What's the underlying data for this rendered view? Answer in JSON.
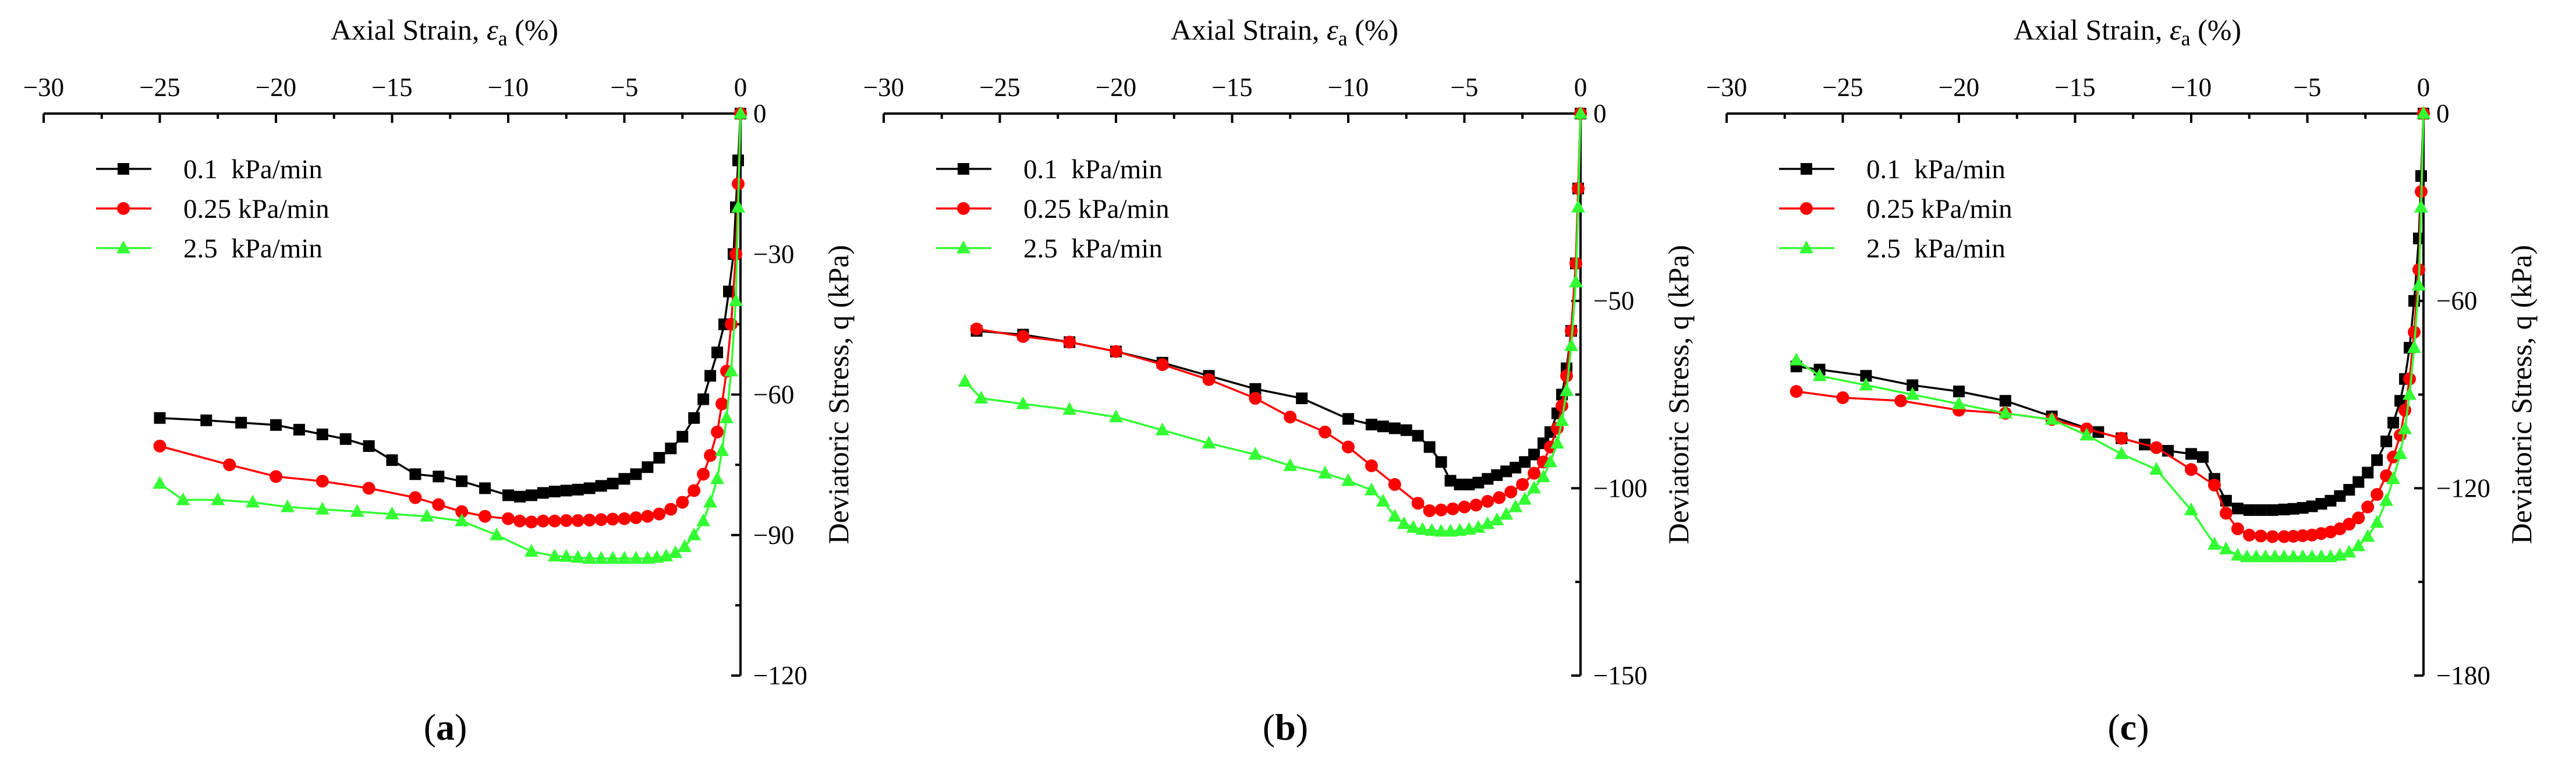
{
  "chart_data": [
    {
      "type": "line",
      "panel_label_parts": [
        "(",
        "a",
        ")"
      ],
      "xlabel": {
        "prefix": "Axial Strain, ",
        "symbol": "ε",
        "subscript": "a",
        "suffix": " (%)"
      },
      "ylabel": "Deviatoric Stress, q (kPa)",
      "xlim": [
        -30,
        0
      ],
      "ylim": [
        -120,
        0
      ],
      "x_ticks": [
        -30,
        -25,
        -20,
        -15,
        -10,
        -5,
        0
      ],
      "x_tick_labels": [
        "−30",
        "−25",
        "−20",
        "−15",
        "−10",
        "−5",
        "0"
      ],
      "y_ticks": [
        0,
        -30,
        -60,
        -90,
        -120
      ],
      "y_tick_labels": [
        "0",
        "−30",
        "−60",
        "−90",
        "−120"
      ],
      "legend_position": "upper-left",
      "series": [
        {
          "name": "0.1  kPa/min",
          "color": "#000000",
          "marker": "square",
          "x": [
            0,
            -0.1,
            -0.2,
            -0.3,
            -0.5,
            -0.7,
            -1.0,
            -1.3,
            -1.6,
            -2.0,
            -2.5,
            -3.0,
            -3.5,
            -4.0,
            -4.5,
            -5.0,
            -5.5,
            -6.0,
            -6.5,
            -7.0,
            -7.5,
            -8.0,
            -8.5,
            -9.0,
            -9.5,
            -10.0,
            -11.0,
            -12.0,
            -13.0,
            -14.0,
            -15.0,
            -16.0,
            -17.0,
            -18.0,
            -19.0,
            -20.0,
            -21.5,
            -23.0,
            -25.0
          ],
          "y": [
            0,
            -10,
            -20,
            -30,
            -38,
            -45,
            -51,
            -56,
            -61,
            -65,
            -69,
            -71.5,
            -73.5,
            -75.5,
            -77,
            -78,
            -79,
            -79.5,
            -80,
            -80.3,
            -80.5,
            -80.7,
            -81,
            -81.5,
            -81.8,
            -81.5,
            -80,
            -78.5,
            -77.5,
            -77,
            -74,
            -71,
            -69.5,
            -68.5,
            -67.5,
            -66.5,
            -66,
            -65.5,
            -65
          ]
        },
        {
          "name": "0.25 kPa/min",
          "color": "#ff0000",
          "marker": "circle",
          "x": [
            0,
            -0.1,
            -0.2,
            -0.4,
            -0.6,
            -0.8,
            -1.0,
            -1.3,
            -1.6,
            -2.0,
            -2.5,
            -3.0,
            -3.5,
            -4.0,
            -4.5,
            -5.0,
            -5.5,
            -6.0,
            -6.5,
            -7.0,
            -7.5,
            -8.0,
            -8.5,
            -9.0,
            -9.5,
            -10.0,
            -11.0,
            -12.0,
            -13.0,
            -14.0,
            -16.0,
            -18.0,
            -20.0,
            -22.0,
            -25.0
          ],
          "y": [
            0,
            -15,
            -30,
            -45,
            -55,
            -62,
            -68,
            -73,
            -77,
            -80.5,
            -83,
            -84.5,
            -85.5,
            -86,
            -86.3,
            -86.5,
            -86.6,
            -86.7,
            -86.8,
            -86.9,
            -86.9,
            -87,
            -87,
            -87.2,
            -87,
            -86.5,
            -86,
            -85,
            -83.5,
            -82,
            -80,
            -78.5,
            -77.5,
            -75,
            -71
          ]
        },
        {
          "name": "2.5  kPa/min",
          "color": "#33ff33",
          "marker": "triangle",
          "x": [
            0,
            -0.1,
            -0.2,
            -0.4,
            -0.6,
            -0.8,
            -1.0,
            -1.3,
            -1.6,
            -2.0,
            -2.4,
            -2.8,
            -3.2,
            -3.6,
            -4.0,
            -4.5,
            -5.0,
            -5.5,
            -6.0,
            -6.5,
            -7.0,
            -7.5,
            -8.0,
            -9.0,
            -10.5,
            -12.0,
            -13.5,
            -15.0,
            -16.5,
            -18.0,
            -19.5,
            -21.0,
            -22.5,
            -24.0,
            -25.0
          ],
          "y": [
            0,
            -20,
            -40,
            -55,
            -65,
            -72,
            -78,
            -83,
            -87,
            -90,
            -92.5,
            -93.8,
            -94.5,
            -94.8,
            -95,
            -95,
            -95,
            -95,
            -95,
            -95,
            -94.8,
            -94.6,
            -94.5,
            -93.5,
            -90,
            -87,
            -86,
            -85.5,
            -85,
            -84.5,
            -84,
            -83,
            -82.5,
            -82.5,
            -79
          ]
        }
      ]
    },
    {
      "type": "line",
      "panel_label_parts": [
        "(",
        "b",
        ")"
      ],
      "xlabel": {
        "prefix": "Axial Strain, ",
        "symbol": "ε",
        "subscript": "a",
        "suffix": " (%)"
      },
      "ylabel": "Deviatoric Stress, q (kPa)",
      "xlim": [
        -30,
        0
      ],
      "ylim": [
        -150,
        0
      ],
      "x_ticks": [
        -30,
        -25,
        -20,
        -15,
        -10,
        -5,
        0
      ],
      "x_tick_labels": [
        "−30",
        "−25",
        "−20",
        "−15",
        "−10",
        "−5",
        "0"
      ],
      "y_ticks": [
        0,
        -50,
        -100,
        -150
      ],
      "y_tick_labels": [
        "0",
        "−50",
        "−100",
        "−150"
      ],
      "legend_position": "upper-left",
      "series": [
        {
          "name": "0.1  kPa/min",
          "color": "#000000",
          "marker": "square",
          "x": [
            0,
            -0.1,
            -0.2,
            -0.4,
            -0.6,
            -0.8,
            -1.0,
            -1.3,
            -1.6,
            -2.0,
            -2.4,
            -2.8,
            -3.2,
            -3.6,
            -4.0,
            -4.4,
            -4.8,
            -5.2,
            -5.6,
            -6.0,
            -6.5,
            -7.0,
            -7.5,
            -8.0,
            -8.5,
            -9.0,
            -10.0,
            -12.0,
            -14.0,
            -16.0,
            -18.0,
            -20.0,
            -22.0,
            -24.0,
            -26.0
          ],
          "y": [
            0,
            -20,
            -40,
            -58,
            -68,
            -75,
            -80,
            -85,
            -88,
            -91,
            -93,
            -94.5,
            -95.5,
            -96.5,
            -97.5,
            -98.5,
            -99,
            -99,
            -98,
            -93,
            -89,
            -86,
            -84.5,
            -84,
            -83.5,
            -83,
            -81.5,
            -76,
            -73.5,
            -70,
            -66.5,
            -63.5,
            -61,
            -59,
            -58
          ]
        },
        {
          "name": "0.25 kPa/min",
          "color": "#ff0000",
          "marker": "circle",
          "x": [
            0,
            -0.1,
            -0.2,
            -0.4,
            -0.6,
            -0.8,
            -1.0,
            -1.3,
            -1.6,
            -2.0,
            -2.5,
            -3.0,
            -3.5,
            -4.0,
            -4.5,
            -5.0,
            -5.5,
            -6.0,
            -6.5,
            -7.0,
            -8.0,
            -9.0,
            -10.0,
            -11.0,
            -12.5,
            -14.0,
            -16.0,
            -18.0,
            -20.0,
            -22.0,
            -24.0,
            -26.0
          ],
          "y": [
            0,
            -20,
            -40,
            -58,
            -70,
            -78,
            -84,
            -89,
            -93,
            -96,
            -99,
            -101,
            -102.5,
            -103.5,
            -104.5,
            -105,
            -105.5,
            -105.8,
            -106,
            -104,
            -99,
            -94,
            -89,
            -85,
            -81,
            -76,
            -71,
            -67,
            -63.5,
            -61,
            -59.5,
            -57.5
          ]
        },
        {
          "name": "2.5  kPa/min",
          "color": "#33ff33",
          "marker": "triangle",
          "x": [
            0,
            -0.1,
            -0.2,
            -0.4,
            -0.6,
            -0.8,
            -1.0,
            -1.3,
            -1.6,
            -2.0,
            -2.4,
            -2.8,
            -3.2,
            -3.6,
            -4.0,
            -4.4,
            -4.8,
            -5.2,
            -5.6,
            -6.0,
            -6.4,
            -6.8,
            -7.2,
            -7.6,
            -8.0,
            -8.5,
            -9.0,
            -10.0,
            -11.0,
            -12.5,
            -14.0,
            -16.0,
            -18.0,
            -20.0,
            -22.0,
            -24.0,
            -25.8,
            -26.5
          ],
          "y": [
            0,
            -25,
            -45,
            -62,
            -74,
            -82,
            -88,
            -93,
            -97,
            -100,
            -103,
            -105,
            -107,
            -108.5,
            -109.5,
            -110.5,
            -111,
            -111.3,
            -111.5,
            -111.5,
            -111.3,
            -111,
            -110.5,
            -109.5,
            -107.5,
            -103.5,
            -100.5,
            -98,
            -96,
            -94,
            -91,
            -88,
            -84.5,
            -81,
            -79,
            -77.5,
            -76,
            -71.5
          ]
        }
      ]
    },
    {
      "type": "line",
      "panel_label_parts": [
        "(",
        "c",
        ")"
      ],
      "xlabel": {
        "prefix": "Axial Strain, ",
        "symbol": "ε",
        "subscript": "a",
        "suffix": " (%)"
      },
      "ylabel": "Deviatoric Stress, q (kPa)",
      "xlim": [
        -30,
        0
      ],
      "ylim": [
        -180,
        0
      ],
      "x_ticks": [
        -30,
        -25,
        -20,
        -15,
        -10,
        -5,
        0
      ],
      "x_tick_labels": [
        "−30",
        "−25",
        "−20",
        "−15",
        "−10",
        "−5",
        "0"
      ],
      "y_ticks": [
        0,
        -60,
        -120,
        -180
      ],
      "y_tick_labels": [
        "0",
        "−60",
        "−120",
        "−180"
      ],
      "legend_position": "upper-left",
      "series": [
        {
          "name": "0.1  kPa/min",
          "color": "#000000",
          "marker": "square",
          "x": [
            0,
            -0.1,
            -0.2,
            -0.4,
            -0.6,
            -0.8,
            -1.0,
            -1.3,
            -1.6,
            -2.0,
            -2.4,
            -2.8,
            -3.2,
            -3.6,
            -4.0,
            -4.4,
            -4.8,
            -5.2,
            -5.6,
            -6.0,
            -6.5,
            -7.0,
            -7.5,
            -8.0,
            -8.5,
            -9.0,
            -9.5,
            -10.0,
            -11.0,
            -12.0,
            -13.0,
            -14.0,
            -16.0,
            -18.0,
            -20.0,
            -22.0,
            -24.0,
            -26.0,
            -27.0
          ],
          "y": [
            0,
            -20,
            -40,
            -60,
            -75,
            -85,
            -92,
            -99,
            -105,
            -111,
            -115,
            -118,
            -120.5,
            -122.5,
            -124,
            -125,
            -125.8,
            -126.3,
            -126.6,
            -126.8,
            -127,
            -127,
            -127,
            -126.5,
            -124,
            -117,
            -110,
            -109,
            -108,
            -106,
            -104,
            -102,
            -97,
            -92,
            -89,
            -87,
            -84,
            -82,
            -81
          ]
        },
        {
          "name": "0.25 kPa/min",
          "color": "#ff0000",
          "marker": "circle",
          "x": [
            0,
            -0.1,
            -0.2,
            -0.4,
            -0.6,
            -0.8,
            -1.0,
            -1.3,
            -1.6,
            -2.0,
            -2.4,
            -2.8,
            -3.2,
            -3.6,
            -4.0,
            -4.4,
            -4.8,
            -5.2,
            -5.6,
            -6.0,
            -6.5,
            -7.0,
            -7.5,
            -8.0,
            -8.5,
            -9.0,
            -10.0,
            -11.5,
            -13.0,
            -14.5,
            -16.0,
            -18.0,
            -20.0,
            -22.5,
            -25.0,
            -27.0
          ],
          "y": [
            0,
            -25,
            -50,
            -70,
            -85,
            -95,
            -103,
            -110,
            -116,
            -122,
            -126,
            -129.5,
            -131.5,
            -133,
            -134,
            -134.5,
            -135,
            -135.2,
            -135.4,
            -135.5,
            -135.5,
            -135.3,
            -135,
            -133,
            -128,
            -119,
            -114,
            -107,
            -104,
            -101,
            -98,
            -96,
            -95,
            -92,
            -91,
            -89
          ]
        },
        {
          "name": "2.5  kPa/min",
          "color": "#33ff33",
          "marker": "triangle",
          "x": [
            0,
            -0.1,
            -0.2,
            -0.4,
            -0.6,
            -0.8,
            -1.0,
            -1.3,
            -1.6,
            -2.0,
            -2.4,
            -2.8,
            -3.2,
            -3.6,
            -4.0,
            -4.4,
            -4.8,
            -5.2,
            -5.6,
            -6.0,
            -6.4,
            -6.8,
            -7.2,
            -7.6,
            -8.0,
            -8.5,
            -9.0,
            -10.0,
            -11.5,
            -13.0,
            -14.5,
            -16.0,
            -18.0,
            -20.0,
            -22.0,
            -24.0,
            -26.0,
            -27.0
          ],
          "y": [
            0,
            -30,
            -55,
            -75,
            -90,
            -101,
            -109,
            -117,
            -124,
            -131,
            -135.5,
            -138.5,
            -140.5,
            -141.5,
            -142,
            -142,
            -142,
            -142,
            -142,
            -142,
            -142,
            -142,
            -142,
            -142,
            -141.5,
            -139.5,
            -138,
            -127,
            -114,
            -109,
            -103,
            -98,
            -96,
            -93,
            -90,
            -87,
            -84,
            -79
          ]
        }
      ]
    }
  ]
}
